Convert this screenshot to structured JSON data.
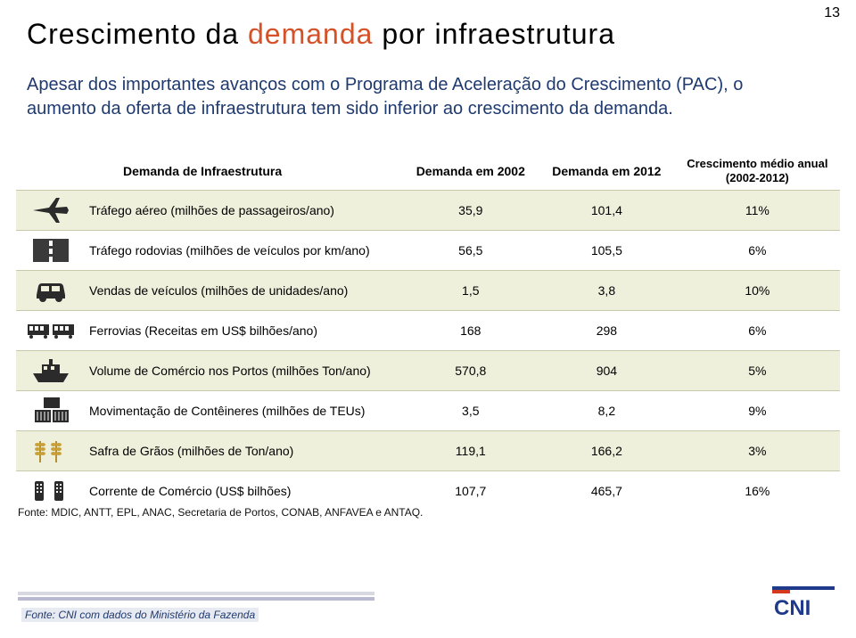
{
  "page_number": "13",
  "title": {
    "t1": "Crescimento da ",
    "t2": "demanda",
    "t3": " por infraestrutura"
  },
  "accent_color": "#d4522a",
  "body_text": "Apesar dos importantes avanços com o Programa de Aceleração do Crescimento (PAC), o aumento da oferta de infraestrutura tem sido inferior ao crescimento da demanda.",
  "table": {
    "headers": {
      "c1": "Demanda de Infraestrutura",
      "c2": "Demanda em 2002",
      "c3": "Demanda em 2012",
      "c4": "Crescimento médio anual (2002-2012)"
    },
    "rows": [
      {
        "icon": "plane",
        "label": "Tráfego aéreo (milhões de passageiros/ano)",
        "v2002": "35,9",
        "v2012": "101,4",
        "growth": "11%"
      },
      {
        "icon": "road",
        "label": "Tráfego rodovias (milhões de veículos por km/ano)",
        "v2002": "56,5",
        "v2012": "105,5",
        "growth": "6%"
      },
      {
        "icon": "car",
        "label": "Vendas de veículos (milhões de unidades/ano)",
        "v2002": "1,5",
        "v2012": "3,8",
        "growth": "10%"
      },
      {
        "icon": "rail",
        "label": "Ferrovias (Receitas em US$ bilhões/ano)",
        "v2002": "168",
        "v2012": "298",
        "growth": "6%"
      },
      {
        "icon": "ship",
        "label": "Volume de Comércio nos Portos (milhões Ton/ano)",
        "v2002": "570,8",
        "v2012": "904",
        "growth": "5%"
      },
      {
        "icon": "container",
        "label": "Movimentação de Contêineres (milhões de TEUs)",
        "v2002": "3,5",
        "v2012": "8,2",
        "growth": "9%"
      },
      {
        "icon": "grain",
        "label": "Safra de Grãos (milhões de Ton/ano)",
        "v2002": "119,1",
        "v2012": "166,2",
        "growth": "3%"
      },
      {
        "icon": "trade",
        "label": "Corrente de Comércio (US$ bilhões)",
        "v2002": "107,7",
        "v2012": "465,7",
        "growth": "16%"
      }
    ],
    "row_odd_bg": "#eef0dc",
    "row_even_bg": "#ffffff",
    "source": "Fonte: MDIC, ANTT, EPL, ANAC, Secretaria de Portos, CONAB, ANFAVEA e ANTAQ."
  },
  "footer_source": "Fonte: CNI com dados do Ministério da Fazenda",
  "logo": {
    "text": "CNI",
    "primary": "#1f3a8a",
    "accent": "#d63a1c"
  }
}
